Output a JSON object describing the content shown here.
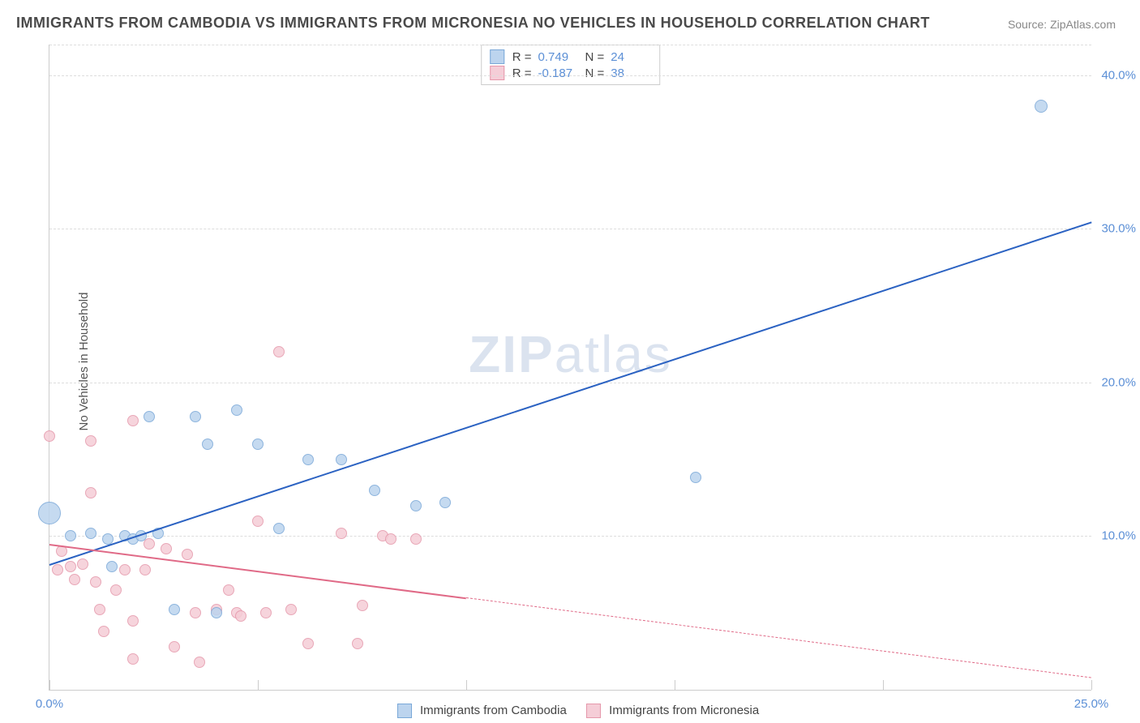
{
  "title": "IMMIGRANTS FROM CAMBODIA VS IMMIGRANTS FROM MICRONESIA NO VEHICLES IN HOUSEHOLD CORRELATION CHART",
  "source": "Source: ZipAtlas.com",
  "ylabel": "No Vehicles in Household",
  "watermark_a": "ZIP",
  "watermark_b": "atlas",
  "series_a": {
    "label": "Immigrants from Cambodia",
    "color_fill": "#bcd4ee",
    "color_stroke": "#7aa8d8",
    "line_color": "#2b62c2",
    "R": "0.749",
    "N": "24",
    "trend": {
      "x1": 0.0,
      "y1": 8.2,
      "x2": 25.0,
      "y2": 30.5
    },
    "points": [
      {
        "x": 0.0,
        "y": 11.5,
        "r": 14
      },
      {
        "x": 0.5,
        "y": 10.0,
        "r": 7
      },
      {
        "x": 1.0,
        "y": 10.2,
        "r": 7
      },
      {
        "x": 1.4,
        "y": 9.8,
        "r": 7
      },
      {
        "x": 1.5,
        "y": 8.0,
        "r": 7
      },
      {
        "x": 1.8,
        "y": 10.0,
        "r": 7
      },
      {
        "x": 2.0,
        "y": 9.8,
        "r": 7
      },
      {
        "x": 2.2,
        "y": 10.0,
        "r": 7
      },
      {
        "x": 2.4,
        "y": 17.8,
        "r": 7
      },
      {
        "x": 2.6,
        "y": 10.2,
        "r": 7
      },
      {
        "x": 3.0,
        "y": 5.2,
        "r": 7
      },
      {
        "x": 3.5,
        "y": 17.8,
        "r": 7
      },
      {
        "x": 3.8,
        "y": 16.0,
        "r": 7
      },
      {
        "x": 4.5,
        "y": 18.2,
        "r": 7
      },
      {
        "x": 5.0,
        "y": 16.0,
        "r": 7
      },
      {
        "x": 5.5,
        "y": 10.5,
        "r": 7
      },
      {
        "x": 6.2,
        "y": 15.0,
        "r": 7
      },
      {
        "x": 7.0,
        "y": 15.0,
        "r": 7
      },
      {
        "x": 7.8,
        "y": 13.0,
        "r": 7
      },
      {
        "x": 8.8,
        "y": 12.0,
        "r": 7
      },
      {
        "x": 9.5,
        "y": 12.2,
        "r": 7
      },
      {
        "x": 15.5,
        "y": 13.8,
        "r": 7
      },
      {
        "x": 23.8,
        "y": 38.0,
        "r": 8
      },
      {
        "x": 4.0,
        "y": 5.0,
        "r": 7
      }
    ]
  },
  "series_b": {
    "label": "Immigrants from Micronesia",
    "color_fill": "#f5cdd7",
    "color_stroke": "#e598ab",
    "line_color": "#e06a87",
    "R": "-0.187",
    "N": "38",
    "trend_solid": {
      "x1": 0.0,
      "y1": 9.5,
      "x2": 10.0,
      "y2": 6.0
    },
    "trend_dash": {
      "x1": 10.0,
      "y1": 6.0,
      "x2": 25.0,
      "y2": 0.8
    },
    "points": [
      {
        "x": 0.0,
        "y": 16.5,
        "r": 7
      },
      {
        "x": 0.2,
        "y": 7.8,
        "r": 7
      },
      {
        "x": 0.3,
        "y": 9.0,
        "r": 7
      },
      {
        "x": 0.5,
        "y": 8.0,
        "r": 7
      },
      {
        "x": 0.6,
        "y": 7.2,
        "r": 7
      },
      {
        "x": 0.8,
        "y": 8.2,
        "r": 7
      },
      {
        "x": 1.0,
        "y": 16.2,
        "r": 7
      },
      {
        "x": 1.0,
        "y": 12.8,
        "r": 7
      },
      {
        "x": 1.1,
        "y": 7.0,
        "r": 7
      },
      {
        "x": 1.2,
        "y": 5.2,
        "r": 7
      },
      {
        "x": 1.3,
        "y": 3.8,
        "r": 7
      },
      {
        "x": 1.6,
        "y": 6.5,
        "r": 7
      },
      {
        "x": 1.8,
        "y": 7.8,
        "r": 7
      },
      {
        "x": 2.0,
        "y": 17.5,
        "r": 7
      },
      {
        "x": 2.0,
        "y": 4.5,
        "r": 7
      },
      {
        "x": 2.0,
        "y": 2.0,
        "r": 7
      },
      {
        "x": 2.3,
        "y": 7.8,
        "r": 7
      },
      {
        "x": 2.4,
        "y": 9.5,
        "r": 7
      },
      {
        "x": 2.8,
        "y": 9.2,
        "r": 7
      },
      {
        "x": 3.0,
        "y": 2.8,
        "r": 7
      },
      {
        "x": 3.3,
        "y": 8.8,
        "r": 7
      },
      {
        "x": 3.5,
        "y": 5.0,
        "r": 7
      },
      {
        "x": 3.6,
        "y": 1.8,
        "r": 7
      },
      {
        "x": 4.0,
        "y": 5.2,
        "r": 7
      },
      {
        "x": 4.3,
        "y": 6.5,
        "r": 7
      },
      {
        "x": 4.5,
        "y": 5.0,
        "r": 7
      },
      {
        "x": 4.6,
        "y": 4.8,
        "r": 7
      },
      {
        "x": 5.0,
        "y": 11.0,
        "r": 7
      },
      {
        "x": 5.2,
        "y": 5.0,
        "r": 7
      },
      {
        "x": 5.5,
        "y": 22.0,
        "r": 7
      },
      {
        "x": 5.8,
        "y": 5.2,
        "r": 7
      },
      {
        "x": 6.2,
        "y": 3.0,
        "r": 7
      },
      {
        "x": 7.0,
        "y": 10.2,
        "r": 7
      },
      {
        "x": 7.4,
        "y": 3.0,
        "r": 7
      },
      {
        "x": 7.5,
        "y": 5.5,
        "r": 7
      },
      {
        "x": 8.0,
        "y": 10.0,
        "r": 7
      },
      {
        "x": 8.2,
        "y": 9.8,
        "r": 7
      },
      {
        "x": 8.8,
        "y": 9.8,
        "r": 7
      }
    ]
  },
  "axes": {
    "xlim": [
      0,
      25
    ],
    "ylim": [
      0,
      42
    ],
    "y_ticks": [
      10.0,
      20.0,
      30.0,
      40.0
    ],
    "y_tick_labels": [
      "10.0%",
      "20.0%",
      "30.0%",
      "40.0%"
    ],
    "x_ticks": [
      0,
      5,
      10,
      15,
      20,
      25
    ],
    "x_tick_labels_shown": [
      "0.0%",
      "25.0%"
    ],
    "grid_color": "#dddddd",
    "background_color": "#ffffff"
  },
  "legend": {
    "a_label": "Immigrants from Cambodia",
    "b_label": "Immigrants from Micronesia"
  },
  "stats_labels": {
    "R": "R  =",
    "N": "N  ="
  }
}
